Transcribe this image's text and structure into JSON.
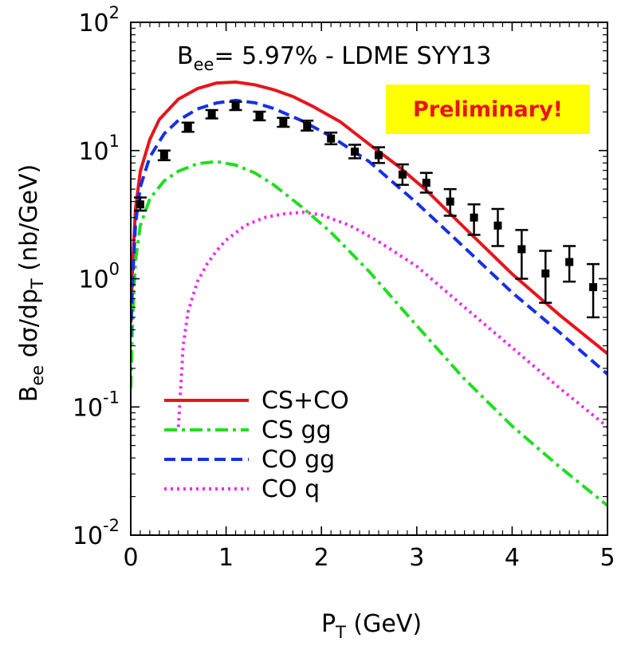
{
  "chart_data": {
    "type": "line",
    "yscale": "log",
    "xlim": [
      0,
      5
    ],
    "ylim": [
      0.01,
      100
    ],
    "x_ticks": [
      {
        "value": 0,
        "label": "0"
      },
      {
        "value": 1,
        "label": "1"
      },
      {
        "value": 2,
        "label": "2"
      },
      {
        "value": 3,
        "label": "3"
      },
      {
        "value": 4,
        "label": "4"
      },
      {
        "value": 5,
        "label": "5"
      }
    ],
    "y_ticks": [
      {
        "value": 100,
        "base": "10",
        "exp": "2"
      },
      {
        "value": 10,
        "base": "10",
        "exp": "1"
      },
      {
        "value": 1,
        "base": "10",
        "exp": "0"
      },
      {
        "value": 0.1,
        "base": "10",
        "exp": "-1"
      },
      {
        "value": 0.01,
        "base": "10",
        "exp": "-2"
      }
    ],
    "xlabel": {
      "main": "P",
      "sub": "T",
      "rest": " (GeV)"
    },
    "ylabel": {
      "p1": "B",
      "s1": "ee",
      "p2": " dσ/dp",
      "s2": "T",
      "p3": " (nb/GeV)"
    },
    "annotation": {
      "p1": "B",
      "s1": "ee",
      "p2": "= 5.97% - LDME SYY13"
    },
    "badge": {
      "text": "Preliminary!",
      "bg_color": "#ffff00",
      "text_color": "#e8141c"
    },
    "grid": false,
    "legend_position": "bottom-left",
    "series": [
      {
        "name": "CS+CO",
        "color": "#e8141c",
        "style": "solid",
        "x": [
          0,
          0.02,
          0.05,
          0.1,
          0.2,
          0.3,
          0.5,
          0.7,
          0.9,
          1.1,
          1.3,
          1.5,
          1.7,
          1.9,
          2.2,
          2.5,
          2.8,
          3.1,
          3.5,
          4.0,
          4.5,
          5.0
        ],
        "y": [
          0.45,
          1.3,
          3.5,
          6.9,
          12.2,
          17.5,
          25.2,
          30.4,
          33.6,
          34.2,
          32.6,
          29.8,
          26.4,
          22.3,
          16.7,
          11.2,
          7.6,
          4.9,
          2.5,
          1.09,
          0.52,
          0.26
        ]
      },
      {
        "name": "CS gg",
        "color": "#22dd22",
        "style": "dashdot",
        "x": [
          0,
          0.02,
          0.05,
          0.1,
          0.2,
          0.35,
          0.5,
          0.7,
          0.9,
          1.1,
          1.3,
          1.5,
          1.8,
          2.1,
          2.5,
          3.0,
          3.5,
          4.0,
          4.5,
          5.0
        ],
        "y": [
          0.14,
          0.5,
          1.4,
          2.6,
          4.2,
          5.8,
          6.9,
          7.9,
          8.2,
          7.7,
          6.7,
          5.4,
          3.6,
          2.3,
          1.14,
          0.43,
          0.165,
          0.071,
          0.034,
          0.017
        ]
      },
      {
        "name": "CO gg",
        "color": "#1530e6",
        "style": "dashed",
        "x": [
          0,
          0.02,
          0.05,
          0.1,
          0.2,
          0.35,
          0.5,
          0.7,
          0.9,
          1.1,
          1.3,
          1.5,
          1.8,
          2.1,
          2.5,
          3.0,
          3.5,
          4.0,
          4.5,
          5.0
        ],
        "y": [
          0.35,
          1.0,
          2.7,
          5.2,
          8.9,
          13.5,
          17.2,
          21.1,
          23.5,
          24.6,
          23.6,
          21.3,
          17.0,
          12.9,
          8.2,
          3.9,
          1.75,
          0.78,
          0.38,
          0.18
        ]
      },
      {
        "name": "CO q",
        "color": "#ee2aee",
        "style": "dotted",
        "x": [
          0.5,
          0.55,
          0.6,
          0.7,
          0.8,
          0.9,
          1.0,
          1.2,
          1.4,
          1.6,
          1.8,
          2.0,
          2.3,
          2.6,
          3.0,
          3.5,
          4.0,
          4.5,
          5.0
        ],
        "y": [
          0.07,
          0.3,
          0.55,
          0.95,
          1.3,
          1.65,
          2.0,
          2.6,
          3.0,
          3.2,
          3.3,
          3.15,
          2.6,
          1.95,
          1.25,
          0.6,
          0.29,
          0.14,
          0.07
        ]
      }
    ],
    "data_points": {
      "marker": "square",
      "color": "#000000",
      "points": [
        {
          "x": 0.1,
          "y": 3.8,
          "lo": 3.4,
          "hi": 4.3
        },
        {
          "x": 0.35,
          "y": 9.2,
          "lo": 8.4,
          "hi": 10.0
        },
        {
          "x": 0.6,
          "y": 15.2,
          "lo": 14.0,
          "hi": 16.5
        },
        {
          "x": 0.85,
          "y": 19.2,
          "lo": 17.8,
          "hi": 20.7
        },
        {
          "x": 1.1,
          "y": 22.3,
          "lo": 20.7,
          "hi": 24.0
        },
        {
          "x": 1.35,
          "y": 18.6,
          "lo": 17.2,
          "hi": 20.1
        },
        {
          "x": 1.6,
          "y": 16.6,
          "lo": 15.3,
          "hi": 18.0
        },
        {
          "x": 1.85,
          "y": 15.6,
          "lo": 14.3,
          "hi": 17.1
        },
        {
          "x": 2.1,
          "y": 12.4,
          "lo": 11.2,
          "hi": 13.8
        },
        {
          "x": 2.35,
          "y": 9.8,
          "lo": 8.7,
          "hi": 11.1
        },
        {
          "x": 2.6,
          "y": 9.2,
          "lo": 8.0,
          "hi": 10.6
        },
        {
          "x": 2.85,
          "y": 6.5,
          "lo": 5.4,
          "hi": 7.8
        },
        {
          "x": 3.1,
          "y": 5.6,
          "lo": 4.7,
          "hi": 6.7
        },
        {
          "x": 3.35,
          "y": 4.0,
          "lo": 3.1,
          "hi": 5.0
        },
        {
          "x": 3.6,
          "y": 3.0,
          "lo": 2.2,
          "hi": 3.8
        },
        {
          "x": 3.85,
          "y": 2.6,
          "lo": 1.8,
          "hi": 3.5
        },
        {
          "x": 4.1,
          "y": 1.7,
          "lo": 1.0,
          "hi": 2.4
        },
        {
          "x": 4.35,
          "y": 1.1,
          "lo": 0.65,
          "hi": 1.65
        },
        {
          "x": 4.6,
          "y": 1.35,
          "lo": 0.95,
          "hi": 1.8
        },
        {
          "x": 4.85,
          "y": 0.86,
          "lo": 0.5,
          "hi": 1.3
        }
      ]
    }
  }
}
